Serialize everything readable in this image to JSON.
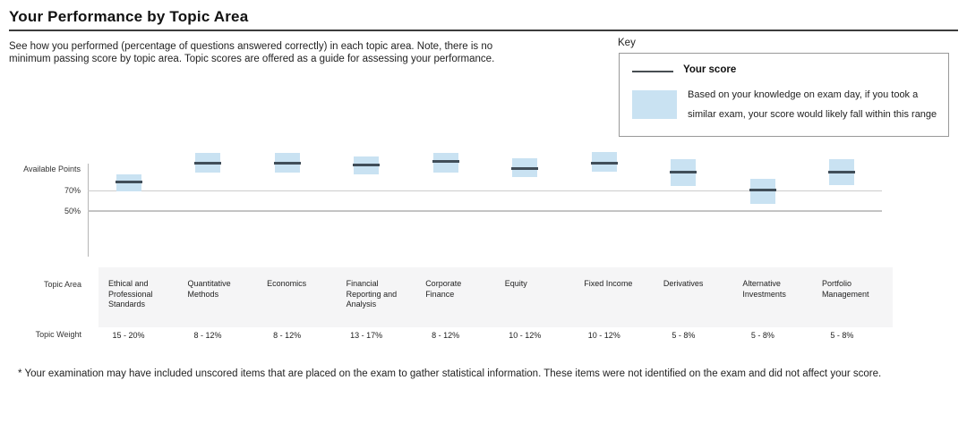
{
  "page": {
    "title": "Your Performance by Topic Area",
    "intro_line1": "See how you performed (percentage of questions answered correctly) in each topic area. Note, there is no",
    "intro_line2": "minimum passing score by topic area. Topic scores are offered as a guide for assessing your performance.",
    "footnote": "* Your examination may have included unscored items that are placed on the exam to gather statistical information. These items were not identified on the exam and did not affect your score."
  },
  "key": {
    "label": "Key",
    "score_label": "Your score",
    "range_desc_line1": "Based on your knowledge on exam day, if you took a",
    "range_desc_line2": "similar exam, your score would likely fall within this range"
  },
  "axis": {
    "top_label": "Available Points",
    "tick_70": "70%",
    "tick_50": "50%"
  },
  "table": {
    "topic_area_label": "Topic Area",
    "topic_weight_label": "Topic Weight"
  },
  "colors": {
    "range_fill": "#c9e2f2",
    "score_line": "#414e59",
    "gridline_70": "#cccccc",
    "gridline_50": "#c4c4c4",
    "band_bg": "#f5f5f6"
  },
  "chart_data": {
    "type": "bar",
    "subtype": "floating-range-with-score-line",
    "title": "Your Performance by Topic Area",
    "ylabel": "Available Points",
    "y_gridlines_pct": [
      70,
      50
    ],
    "legend": [
      "Your score",
      "Based on your knowledge on exam day, if you took a similar exam, your score would likely fall within this range"
    ],
    "topics": [
      {
        "name": "Ethical and Professional Standards",
        "weight": "15 - 20%",
        "score": 79,
        "range_low": 70,
        "range_high": 86.5
      },
      {
        "name": "Quantitative Methods",
        "weight": "8 - 12%",
        "score": 98,
        "range_low": 88,
        "range_high": 107.5
      },
      {
        "name": "Economics",
        "weight": "8 - 12%",
        "score": 98,
        "range_low": 88,
        "range_high": 107.5
      },
      {
        "name": "Financial Reporting and Analysis",
        "weight": "13 - 17%",
        "score": 96,
        "range_low": 86.5,
        "range_high": 104
      },
      {
        "name": "Corporate Finance",
        "weight": "8 - 12%",
        "score": 99,
        "range_low": 88,
        "range_high": 107.5
      },
      {
        "name": "Equity",
        "weight": "10 - 12%",
        "score": 92,
        "range_low": 84,
        "range_high": 102.5
      },
      {
        "name": "Fixed Income",
        "weight": "10 - 12%",
        "score": 98,
        "range_low": 89,
        "range_high": 108.5
      },
      {
        "name": "Derivatives",
        "weight": "5 - 8%",
        "score": 89,
        "range_low": 75,
        "range_high": 101.5
      },
      {
        "name": "Alternative Investments",
        "weight": "5 - 8%",
        "score": 70.5,
        "range_low": 57,
        "range_high": 82
      },
      {
        "name": "Portfolio Management",
        "weight": "5 - 8%",
        "score": 89,
        "range_low": 76,
        "range_high": 101.5
      }
    ]
  }
}
